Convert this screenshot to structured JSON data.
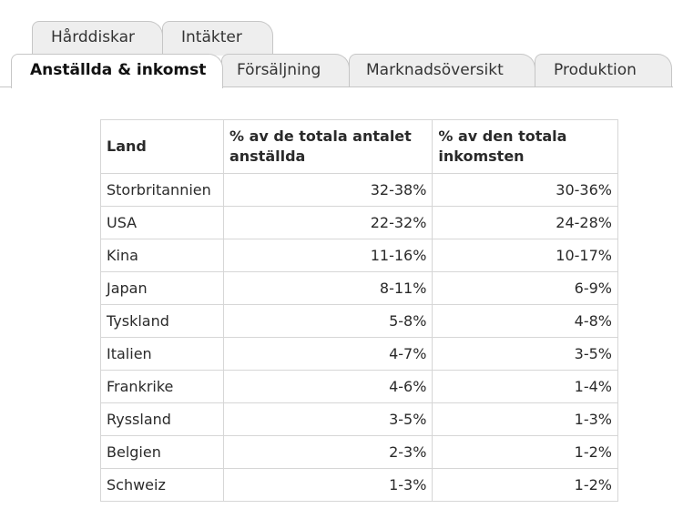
{
  "tabs": {
    "back": [
      {
        "label": "Hårddiskar"
      },
      {
        "label": "Intäkter"
      }
    ],
    "front": [
      {
        "label": "Anställda & inkomst",
        "active": true
      },
      {
        "label": "Försäljning"
      },
      {
        "label": "Marknadsöversikt"
      },
      {
        "label": "Produktion"
      }
    ]
  },
  "table": {
    "headers": [
      "Land",
      "% av de totala antalet anställda",
      "% av den totala inkomsten"
    ],
    "rows": [
      [
        "Storbritannien",
        "32-38%",
        "30-36%"
      ],
      [
        "USA",
        "22-32%",
        "24-28%"
      ],
      [
        "Kina",
        "11-16%",
        "10-17%"
      ],
      [
        "Japan",
        "8-11%",
        "6-9%"
      ],
      [
        "Tyskland",
        "5-8%",
        "4-8%"
      ],
      [
        "Italien",
        "4-7%",
        "3-5%"
      ],
      [
        "Frankrike",
        "4-6%",
        "1-4%"
      ],
      [
        "Ryssland",
        "3-5%",
        "1-3%"
      ],
      [
        "Belgien",
        "2-3%",
        "1-2%"
      ],
      [
        "Schweiz",
        "1-3%",
        "1-2%"
      ]
    ]
  }
}
